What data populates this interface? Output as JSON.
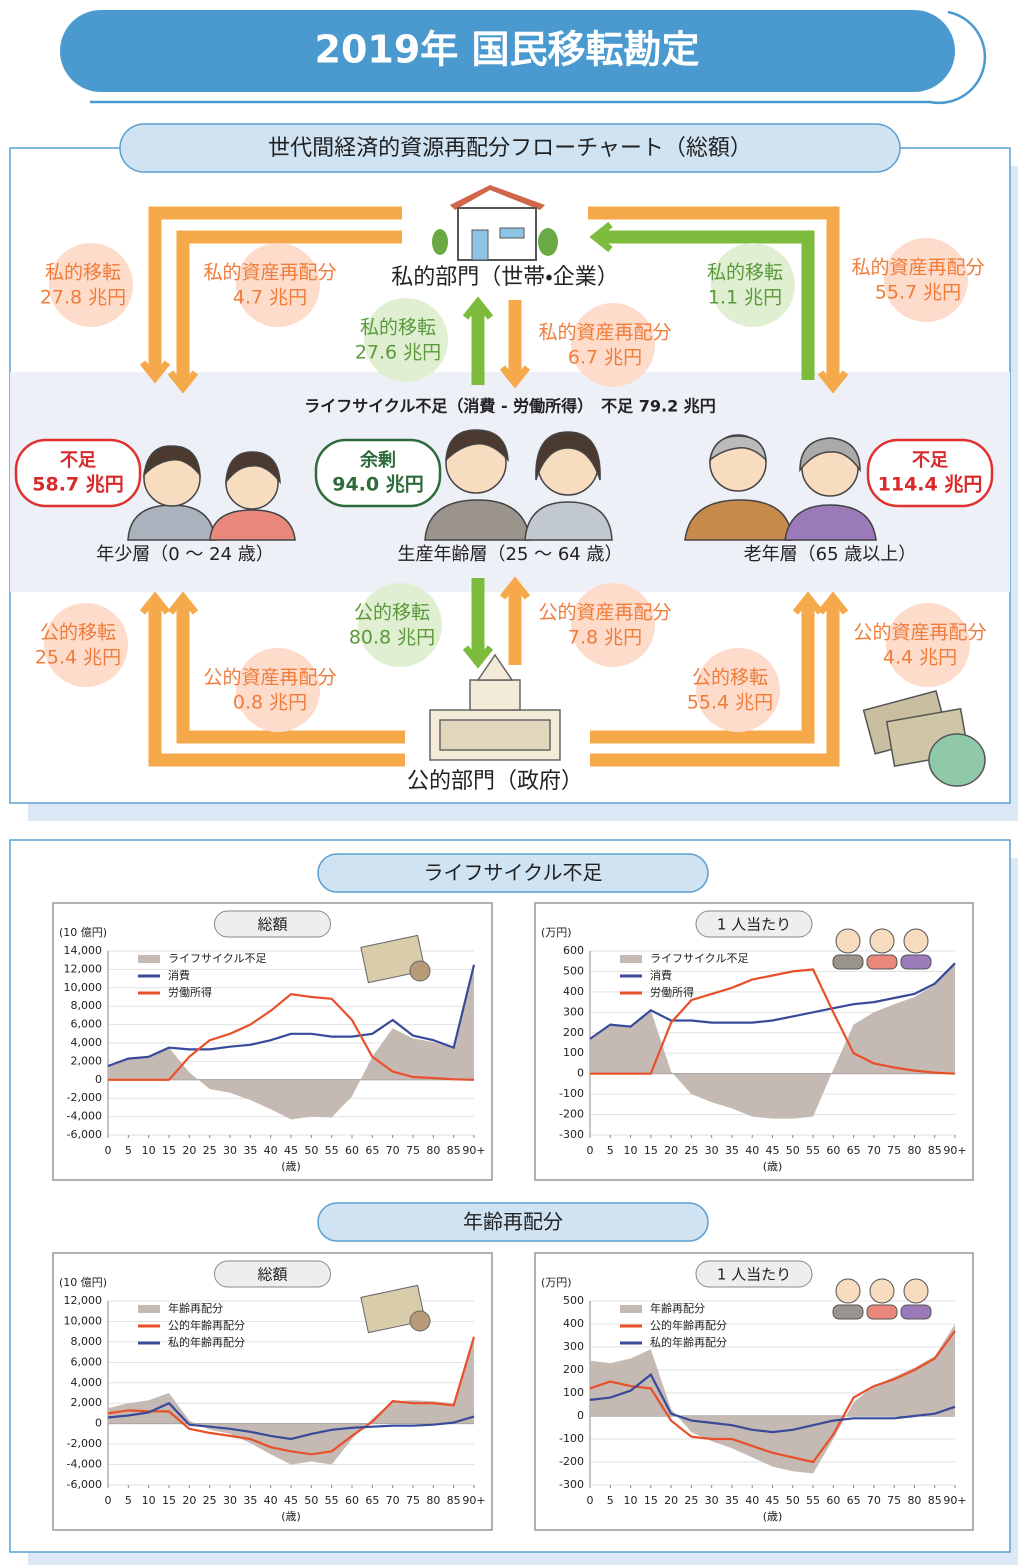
{
  "header": {
    "title": "2019年 国民移転勘定"
  },
  "flowchart": {
    "title": "世代間経済的資源再配分フローチャート（総額）",
    "private_sector": "私的部門（世帯・企業）",
    "public_sector": "公的部門（政府）",
    "lifecycle_deficit": "ライフサイクル不足（消費 - 労働所得）　不足 79.2 兆円",
    "groups": [
      {
        "label": "年少層（0 ～ 24 歳）",
        "status": "不足",
        "amount": "58.7 兆円"
      },
      {
        "label": "生産年齢層（25 ～ 64 歳）",
        "status": "余剰",
        "amount": "94.0 兆円"
      },
      {
        "label": "老年層（65 歳以上）",
        "status": "不足",
        "amount": "114.4 兆円"
      }
    ],
    "flows": [
      {
        "label": "私的移転",
        "amount": "27.8 兆円"
      },
      {
        "label": "私的資産再配分",
        "amount": "4.7 兆円"
      },
      {
        "label": "私的移転",
        "amount": "27.6 兆円"
      },
      {
        "label": "私的資産再配分",
        "amount": "6.7 兆円"
      },
      {
        "label": "私的移転",
        "amount": "1.1 兆円"
      },
      {
        "label": "私的資産再配分",
        "amount": "55.7 兆円"
      },
      {
        "label": "公的移転",
        "amount": "25.4 兆円"
      },
      {
        "label": "公的資産再配分",
        "amount": "0.8 兆円"
      },
      {
        "label": "公的移転",
        "amount": "80.8 兆円"
      },
      {
        "label": "公的資産再配分",
        "amount": "7.8 兆円"
      },
      {
        "label": "公的移転",
        "amount": "55.4 兆円"
      },
      {
        "label": "公的資産再配分",
        "amount": "4.4 兆円"
      }
    ]
  },
  "sections": [
    "ライフサイクル不足",
    "年齢再配分"
  ],
  "chart_data": [
    {
      "type": "line",
      "title": "総額",
      "unit": "(10 億円)",
      "x_label": "(歳)",
      "x": [
        0,
        5,
        10,
        15,
        20,
        25,
        30,
        35,
        40,
        45,
        50,
        55,
        60,
        65,
        70,
        75,
        80,
        85,
        90
      ],
      "xlim": [
        0,
        90
      ],
      "xticks": [
        0,
        5,
        10,
        15,
        20,
        25,
        30,
        35,
        40,
        45,
        50,
        55,
        60,
        65,
        70,
        75,
        80,
        85,
        {
          "value": 90,
          "label": "90+"
        }
      ],
      "ylim": [
        -6000,
        14000
      ],
      "yticks": [
        {
          "value": -6000,
          "label": "-6,000"
        },
        {
          "value": -4000,
          "label": "-4,000"
        },
        {
          "value": -2000,
          "label": "-2,000"
        },
        0,
        {
          "value": 2000,
          "label": "2,000"
        },
        {
          "value": 4000,
          "label": "4,000"
        },
        {
          "value": 6000,
          "label": "6,000"
        },
        {
          "value": 8000,
          "label": "8,000"
        },
        {
          "value": 10000,
          "label": "10,000"
        },
        {
          "value": 12000,
          "label": "12,000"
        },
        {
          "value": 14000,
          "label": "14,000"
        }
      ],
      "grid": true,
      "series": [
        {
          "name": "ライフサイクル不足",
          "kind": "area",
          "color": "#c5b9b3",
          "values": [
            1500,
            2300,
            2500,
            3500,
            800,
            -1000,
            -1400,
            -2200,
            -3200,
            -4300,
            -4000,
            -4100,
            -1800,
            2500,
            5600,
            4500,
            4100,
            3450,
            12500
          ]
        },
        {
          "name": "消費",
          "kind": "line",
          "color": "#3a4a9a",
          "values": [
            1500,
            2300,
            2500,
            3500,
            3300,
            3300,
            3600,
            3800,
            4300,
            5000,
            5000,
            4700,
            4700,
            5000,
            6500,
            4800,
            4300,
            3500,
            12500
          ]
        },
        {
          "name": "労働所得",
          "kind": "line",
          "color": "#e8502a",
          "values": [
            0,
            0,
            0,
            0,
            2500,
            4300,
            5000,
            6000,
            7500,
            9300,
            9000,
            8800,
            6500,
            2500,
            900,
            300,
            200,
            50,
            0
          ]
        }
      ]
    },
    {
      "type": "line",
      "title": "1 人当たり",
      "unit": "(万円)",
      "x_label": "(歳)",
      "x": [
        0,
        5,
        10,
        15,
        20,
        25,
        30,
        35,
        40,
        45,
        50,
        55,
        60,
        65,
        70,
        75,
        80,
        85,
        90
      ],
      "xlim": [
        0,
        90
      ],
      "xticks": [
        0,
        5,
        10,
        15,
        20,
        25,
        30,
        35,
        40,
        45,
        50,
        55,
        60,
        65,
        70,
        75,
        80,
        85,
        {
          "value": 90,
          "label": "90+"
        }
      ],
      "ylim": [
        -300,
        600
      ],
      "yticks": [
        -300,
        -200,
        -100,
        0,
        100,
        200,
        300,
        400,
        500,
        600
      ],
      "grid": true,
      "series": [
        {
          "name": "ライフサイクル不足",
          "kind": "area",
          "color": "#c5b9b3",
          "values": [
            170,
            240,
            230,
            310,
            10,
            -100,
            -140,
            -170,
            -210,
            -220,
            -220,
            -210,
            20,
            240,
            300,
            340,
            375,
            435,
            540
          ]
        },
        {
          "name": "消費",
          "kind": "line",
          "color": "#3a4a9a",
          "values": [
            170,
            240,
            230,
            310,
            260,
            260,
            250,
            250,
            250,
            260,
            280,
            300,
            320,
            340,
            350,
            370,
            390,
            440,
            540
          ]
        },
        {
          "name": "労働所得",
          "kind": "line",
          "color": "#e8502a",
          "values": [
            0,
            0,
            0,
            0,
            250,
            360,
            390,
            420,
            460,
            480,
            500,
            510,
            300,
            100,
            50,
            30,
            15,
            5,
            0
          ]
        }
      ]
    },
    {
      "type": "line",
      "title": "総額",
      "unit": "(10 億円)",
      "x_label": "(歳)",
      "x": [
        0,
        5,
        10,
        15,
        20,
        25,
        30,
        35,
        40,
        45,
        50,
        55,
        60,
        65,
        70,
        75,
        80,
        85,
        90
      ],
      "xlim": [
        0,
        90
      ],
      "xticks": [
        0,
        5,
        10,
        15,
        20,
        25,
        30,
        35,
        40,
        45,
        50,
        55,
        60,
        65,
        70,
        75,
        80,
        85,
        {
          "value": 90,
          "label": "90+"
        }
      ],
      "ylim": [
        -6000,
        12000
      ],
      "yticks": [
        {
          "value": -6000,
          "label": "-6,000"
        },
        {
          "value": -4000,
          "label": "-4,000"
        },
        {
          "value": -2000,
          "label": "-2,000"
        },
        0,
        {
          "value": 2000,
          "label": "2,000"
        },
        {
          "value": 4000,
          "label": "4,000"
        },
        {
          "value": 6000,
          "label": "6,000"
        },
        {
          "value": 8000,
          "label": "8,000"
        },
        {
          "value": 10000,
          "label": "10,000"
        },
        {
          "value": 12000,
          "label": "12,000"
        }
      ],
      "grid": true,
      "series": [
        {
          "name": "年齢再配分",
          "kind": "area",
          "color": "#c5b9b3",
          "values": [
            1500,
            2000,
            2300,
            3000,
            300,
            -600,
            -1000,
            -1900,
            -3000,
            -4000,
            -3700,
            -4000,
            -1500,
            500,
            2200,
            2300,
            2200,
            2000,
            8500
          ]
        },
        {
          "name": "公的年齢再配分",
          "kind": "line",
          "color": "#e8502a",
          "values": [
            1000,
            1300,
            1200,
            1200,
            -500,
            -900,
            -1200,
            -1500,
            -2300,
            -2700,
            -3000,
            -2700,
            -1200,
            200,
            2200,
            2000,
            2000,
            1800,
            8500
          ]
        },
        {
          "name": "私的年齢再配分",
          "kind": "line",
          "color": "#3a4a9a",
          "values": [
            600,
            800,
            1100,
            2000,
            -100,
            -300,
            -500,
            -800,
            -1200,
            -1500,
            -1000,
            -600,
            -400,
            -300,
            -200,
            -200,
            -100,
            100,
            700
          ]
        }
      ]
    },
    {
      "type": "line",
      "title": "1 人当たり",
      "unit": "(万円)",
      "x_label": "(歳)",
      "x": [
        0,
        5,
        10,
        15,
        20,
        25,
        30,
        35,
        40,
        45,
        50,
        55,
        60,
        65,
        70,
        75,
        80,
        85,
        90
      ],
      "xlim": [
        0,
        90
      ],
      "xticks": [
        0,
        5,
        10,
        15,
        20,
        25,
        30,
        35,
        40,
        45,
        50,
        55,
        60,
        65,
        70,
        75,
        80,
        85,
        {
          "value": 90,
          "label": "90+"
        }
      ],
      "ylim": [
        -300,
        500
      ],
      "yticks": [
        -300,
        -200,
        -100,
        0,
        100,
        200,
        300,
        400,
        500
      ],
      "grid": true,
      "series": [
        {
          "name": "年齢再配分",
          "kind": "area",
          "color": "#c5b9b3",
          "values": [
            240,
            230,
            250,
            290,
            30,
            -70,
            -110,
            -140,
            -180,
            -220,
            -240,
            -250,
            -100,
            60,
            130,
            170,
            210,
            260,
            400
          ]
        },
        {
          "name": "公的年齢再配分",
          "kind": "line",
          "color": "#e8502a",
          "values": [
            120,
            150,
            130,
            120,
            -20,
            -90,
            -100,
            -100,
            -130,
            -160,
            -180,
            -200,
            -80,
            80,
            130,
            160,
            200,
            250,
            370
          ]
        },
        {
          "name": "私的年齢再配分",
          "kind": "line",
          "color": "#3a4a9a",
          "values": [
            70,
            80,
            110,
            180,
            10,
            -20,
            -30,
            -40,
            -60,
            -70,
            -60,
            -40,
            -20,
            -10,
            -10,
            -10,
            0,
            10,
            40
          ]
        }
      ]
    }
  ]
}
